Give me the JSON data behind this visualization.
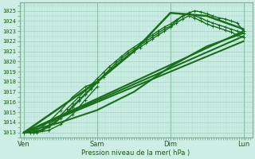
{
  "bg_color": "#cceee4",
  "grid_color": "#99ccbb",
  "line_color": "#1a6e1a",
  "ylim": [
    1012.5,
    1025.8
  ],
  "yticks": [
    1013,
    1014,
    1015,
    1016,
    1017,
    1018,
    1019,
    1020,
    1021,
    1022,
    1023,
    1024,
    1025
  ],
  "xlabel": "Pression niveau de la mer( hPa )",
  "xtick_labels": [
    "Ven",
    "Sam",
    "Dim",
    "Lun"
  ],
  "xtick_pos": [
    0,
    0.333,
    0.667,
    1.0
  ],
  "xlim": [
    -0.02,
    1.04
  ],
  "lines": [
    {
      "x": [
        0.0,
        0.028,
        0.042,
        0.056,
        0.083,
        0.111,
        0.139,
        0.167,
        0.194,
        0.222,
        0.25,
        0.278,
        0.306,
        0.333,
        0.361,
        0.389,
        0.417,
        0.444,
        0.472,
        0.5,
        0.528,
        0.556,
        0.583,
        0.611,
        0.639,
        0.667,
        0.694,
        0.722,
        0.75,
        0.778,
        0.806,
        0.833,
        0.861,
        0.889,
        0.917,
        0.944,
        0.972,
        1.0
      ],
      "y": [
        1013.0,
        1013.0,
        1013.0,
        1013.1,
        1013.3,
        1013.6,
        1014.0,
        1014.5,
        1015.0,
        1015.6,
        1016.2,
        1016.8,
        1017.4,
        1018.0,
        1018.6,
        1019.2,
        1019.8,
        1020.3,
        1020.8,
        1021.2,
        1021.6,
        1022.0,
        1022.4,
        1022.8,
        1023.2,
        1023.5,
        1024.0,
        1024.5,
        1024.8,
        1025.0,
        1024.9,
        1024.7,
        1024.5,
        1024.3,
        1024.2,
        1024.0,
        1023.8,
        1023.0
      ],
      "lw": 1.0,
      "marker": "+"
    },
    {
      "x": [
        0.0,
        0.028,
        0.056,
        0.083,
        0.111,
        0.139,
        0.167,
        0.194,
        0.222,
        0.25,
        0.278,
        0.306,
        0.333,
        0.361,
        0.389,
        0.417,
        0.444,
        0.472,
        0.5,
        0.528,
        0.556,
        0.583,
        0.611,
        0.639,
        0.667,
        0.694,
        0.722,
        0.75,
        0.778,
        0.806,
        0.833,
        0.861,
        0.889,
        0.917,
        0.944,
        0.972,
        1.0
      ],
      "y": [
        1013.0,
        1013.0,
        1013.1,
        1013.3,
        1013.7,
        1014.2,
        1014.7,
        1015.3,
        1015.9,
        1016.5,
        1017.1,
        1017.7,
        1018.3,
        1018.9,
        1019.5,
        1020.0,
        1020.5,
        1021.0,
        1021.4,
        1021.8,
        1022.2,
        1022.6,
        1023.0,
        1023.4,
        1023.7,
        1024.1,
        1024.5,
        1024.7,
        1024.5,
        1024.3,
        1024.0,
        1023.8,
        1023.6,
        1023.4,
        1023.2,
        1023.0,
        1022.8
      ],
      "lw": 1.0,
      "marker": "+"
    },
    {
      "x": [
        0.0,
        0.042,
        0.083,
        0.111,
        0.139,
        0.167,
        0.194,
        0.222,
        0.25,
        0.278,
        0.306,
        0.333,
        0.361,
        0.389,
        0.417,
        0.444,
        0.472,
        0.5,
        0.528,
        0.556,
        0.583,
        0.611,
        0.639,
        0.667,
        0.694,
        0.722,
        0.75,
        0.778,
        0.806,
        0.833,
        0.861,
        0.889,
        0.917,
        0.944,
        0.972,
        1.0
      ],
      "y": [
        1013.0,
        1013.0,
        1013.2,
        1013.5,
        1013.9,
        1014.4,
        1014.9,
        1015.5,
        1016.1,
        1016.7,
        1017.3,
        1017.9,
        1018.5,
        1019.1,
        1019.6,
        1020.1,
        1020.6,
        1021.0,
        1021.4,
        1021.8,
        1022.2,
        1022.6,
        1023.0,
        1023.4,
        1023.8,
        1024.2,
        1024.5,
        1024.3,
        1024.0,
        1023.7,
        1023.5,
        1023.3,
        1023.1,
        1022.9,
        1022.6,
        1022.4
      ],
      "lw": 1.0,
      "marker": "+"
    },
    {
      "x": [
        0.0,
        1.0
      ],
      "y": [
        1013.0,
        1022.0
      ],
      "lw": 1.5,
      "marker": null
    },
    {
      "x": [
        0.0,
        1.0
      ],
      "y": [
        1013.0,
        1022.5
      ],
      "lw": 1.5,
      "marker": null
    },
    {
      "x": [
        0.0,
        1.0
      ],
      "y": [
        1013.0,
        1023.0
      ],
      "lw": 1.5,
      "marker": null
    },
    {
      "x": [
        0.0,
        0.167,
        0.333,
        0.5,
        0.667,
        0.833,
        1.0
      ],
      "y": [
        1013.0,
        1014.0,
        1015.2,
        1017.0,
        1019.5,
        1021.5,
        1022.8
      ],
      "lw": 1.5,
      "marker": null
    },
    {
      "x": [
        0.0,
        0.333,
        0.5,
        0.667,
        0.833,
        1.0
      ],
      "y": [
        1013.0,
        1018.0,
        1021.0,
        1024.8,
        1024.5,
        1023.2
      ],
      "lw": 1.8,
      "marker": null
    },
    {
      "x": [
        0.0,
        0.056,
        0.111,
        0.167,
        0.222,
        0.278,
        0.333
      ],
      "y": [
        1013.0,
        1013.2,
        1014.0,
        1015.2,
        1016.5,
        1017.5,
        1018.0
      ],
      "lw": 1.0,
      "marker": "+"
    },
    {
      "x": [
        0.0,
        0.056,
        0.111,
        0.167,
        0.222,
        0.278,
        0.333
      ],
      "y": [
        1013.0,
        1013.0,
        1013.2,
        1013.8,
        1014.8,
        1016.2,
        1017.5
      ],
      "lw": 1.0,
      "marker": "+"
    }
  ]
}
